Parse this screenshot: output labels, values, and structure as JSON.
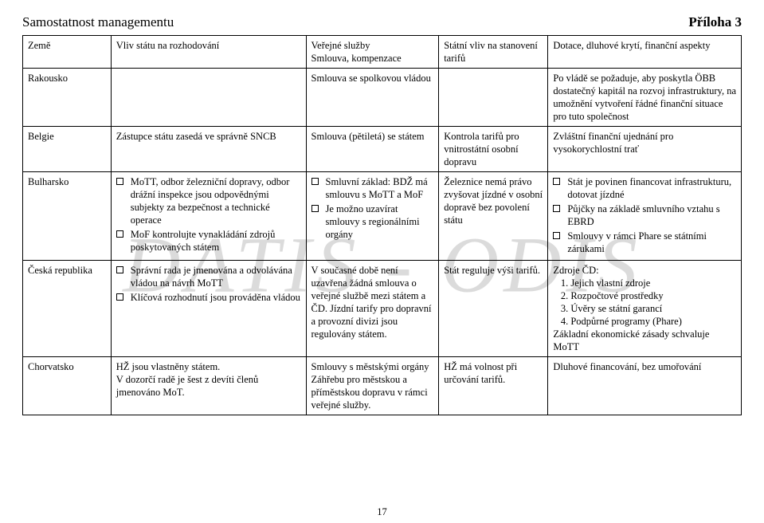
{
  "page": {
    "title": "Samostatnost managementu",
    "appendix": "Příloha 3",
    "page_number": "17"
  },
  "table": {
    "headers": {
      "country": "Země",
      "state_influence": "Vliv státu na rozhodování",
      "contract": "Veřejné služby\nSmlouva, kompenzace",
      "tariff": "Státní vliv na stanovení tarifů",
      "finance": "Dotace, dluhové krytí, finanční aspekty"
    },
    "rows": [
      {
        "country": "Rakousko",
        "influence": "",
        "contract": "Smlouva se spolkovou vládou",
        "tariff": "",
        "finance": "Po vládě se požaduje, aby poskytla ÖBB dostatečný kapitál na rozvoj infrastruktury, na umožnění vytvoření řádné finanční situace pro tuto společnost"
      },
      {
        "country": "Belgie",
        "influence": "Zástupce státu zasedá ve správně SNCB",
        "contract": "Smlouva (pětiletá) se státem",
        "tariff": "Kontrola tarifů pro vnitrostátní osobní dopravu",
        "finance": "Zvláštní finanční ujednání pro vysokorychlostní trať"
      },
      {
        "country": "Bulharsko",
        "influence_items": [
          "MoTT, odbor železniční dopravy, odbor drážní inspekce jsou odpovědnými subjekty za bezpečnost a technické operace",
          "MoF kontrolujte vynakládání zdrojů poskytovaných státem"
        ],
        "contract_items": [
          "Smluvní základ: BDŽ má smlouvu s MoTT a MoF",
          "Je možno uzavírat smlouvy s regionálními orgány"
        ],
        "tariff": "Železnice nemá právo zvyšovat jízdné v osobní dopravě bez povolení státu",
        "finance_items": [
          "Stát je povinen financovat infrastrukturu, dotovat jízdné",
          "Půjčky na základě smluvního vztahu s EBRD",
          "Smlouvy v rámci Phare se státními zárukami"
        ]
      },
      {
        "country": "Česká republika",
        "influence_items": [
          "Správní rada je jmenována a odvolávána vládou na návrh MoTT",
          "Klíčová rozhodnutí jsou prováděna vládou"
        ],
        "contract": "V současné době není uzavřena žádná smlouva o veřejné službě mezi státem a ČD. Jízdní tarify pro dopravní a provozní divizi jsou regulovány státem.",
        "tariff": "Stát reguluje výši tarifů.",
        "finance_intro": "Zdroje ČD:",
        "finance_num_items": [
          "Jejich vlastní zdroje",
          "Rozpočtové prostředky",
          "Úvěry se státní garancí",
          "Podpůrné programy (Phare)"
        ],
        "finance_outro": "Základní ekonomické zásady schvaluje MoTT"
      },
      {
        "country": "Chorvatsko",
        "influence": "HŽ jsou vlastněny státem.\nV dozorčí radě je šest z devíti členů jmenováno MoT.",
        "contract": "Smlouvy s městskými orgány Záhřebu pro městskou a příměstskou dopravu v rámci veřejné služby.",
        "tariff": "HŽ má volnost při určování tarifů.",
        "finance": "Dluhové financování, bez umořování"
      }
    ]
  },
  "watermark": {
    "label": "DATIS - ODIS",
    "font_size": 72,
    "color": "#808080"
  }
}
